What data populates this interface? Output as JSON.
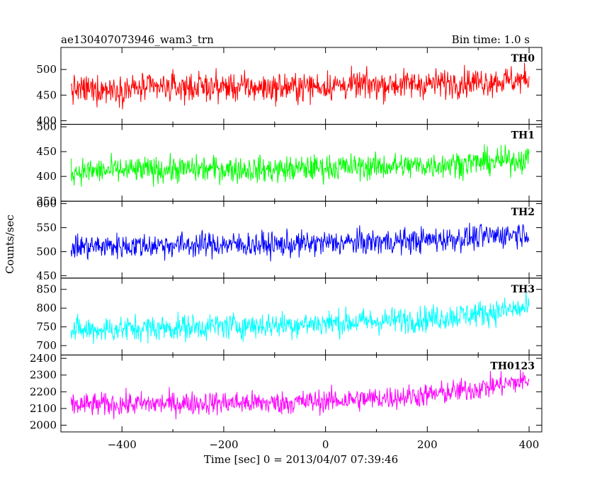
{
  "header": {
    "left_title": "ae130407073946_wam3_trn",
    "right_title": "Bin time: 1.0 s"
  },
  "axes": {
    "xlabel": "Time [sec] 0 = 2013/04/07 07:39:46",
    "ylabel": "Counts/sec",
    "x_ticks": [
      "−400",
      "−200",
      "0",
      "200",
      "400"
    ]
  },
  "chart_data": [
    {
      "type": "line",
      "name": "TH0",
      "color": "#ff0000",
      "x": [
        -500,
        -400,
        -300,
        -200,
        -100,
        0,
        100,
        200,
        300,
        400
      ],
      "y": [
        460,
        462,
        465,
        466,
        464,
        468,
        470,
        472,
        476,
        480
      ],
      "ylim": [
        393,
        543
      ],
      "y_ticks": [
        400,
        450,
        500
      ],
      "noise_amplitude": 32,
      "xlim": [
        -520,
        425
      ],
      "series_x_range": [
        -500,
        400
      ]
    },
    {
      "type": "line",
      "name": "TH1",
      "color": "#00ff00",
      "x": [
        -500,
        -400,
        -300,
        -200,
        -100,
        0,
        100,
        200,
        300,
        400
      ],
      "y": [
        410,
        412,
        414,
        415,
        413,
        418,
        420,
        422,
        428,
        435
      ],
      "ylim": [
        350,
        505
      ],
      "y_ticks": [
        350,
        400,
        450,
        500
      ],
      "noise_amplitude": 30,
      "xlim": [
        -520,
        425
      ],
      "series_x_range": [
        -500,
        400
      ]
    },
    {
      "type": "line",
      "name": "TH2",
      "color": "#0000ff",
      "x": [
        -500,
        -400,
        -300,
        -200,
        -100,
        0,
        100,
        200,
        300,
        400
      ],
      "y": [
        510,
        512,
        514,
        515,
        514,
        518,
        520,
        524,
        530,
        540
      ],
      "ylim": [
        445,
        605
      ],
      "y_ticks": [
        450,
        500,
        550,
        600
      ],
      "noise_amplitude": 30,
      "xlim": [
        -520,
        425
      ],
      "series_x_range": [
        -500,
        400
      ]
    },
    {
      "type": "line",
      "name": "TH3",
      "color": "#00ffff",
      "x": [
        -500,
        -400,
        -300,
        -200,
        -100,
        0,
        100,
        200,
        300,
        400
      ],
      "y": [
        740,
        745,
        748,
        752,
        755,
        760,
        765,
        772,
        785,
        800
      ],
      "ylim": [
        675,
        880
      ],
      "y_ticks": [
        700,
        750,
        800,
        850
      ],
      "noise_amplitude": 40,
      "xlim": [
        -520,
        425
      ],
      "series_x_range": [
        -500,
        400
      ]
    },
    {
      "type": "line",
      "name": "TH0123",
      "color": "#ff00ff",
      "x": [
        -500,
        -400,
        -300,
        -200,
        -100,
        0,
        100,
        200,
        300,
        400
      ],
      "y": [
        2120,
        2125,
        2130,
        2135,
        2132,
        2145,
        2160,
        2180,
        2220,
        2270
      ],
      "ylim": [
        1960,
        2420
      ],
      "y_ticks": [
        2000,
        2100,
        2200,
        2300,
        2400
      ],
      "noise_amplitude": 80,
      "xlim": [
        -520,
        425
      ],
      "series_x_range": [
        -500,
        400
      ]
    }
  ]
}
